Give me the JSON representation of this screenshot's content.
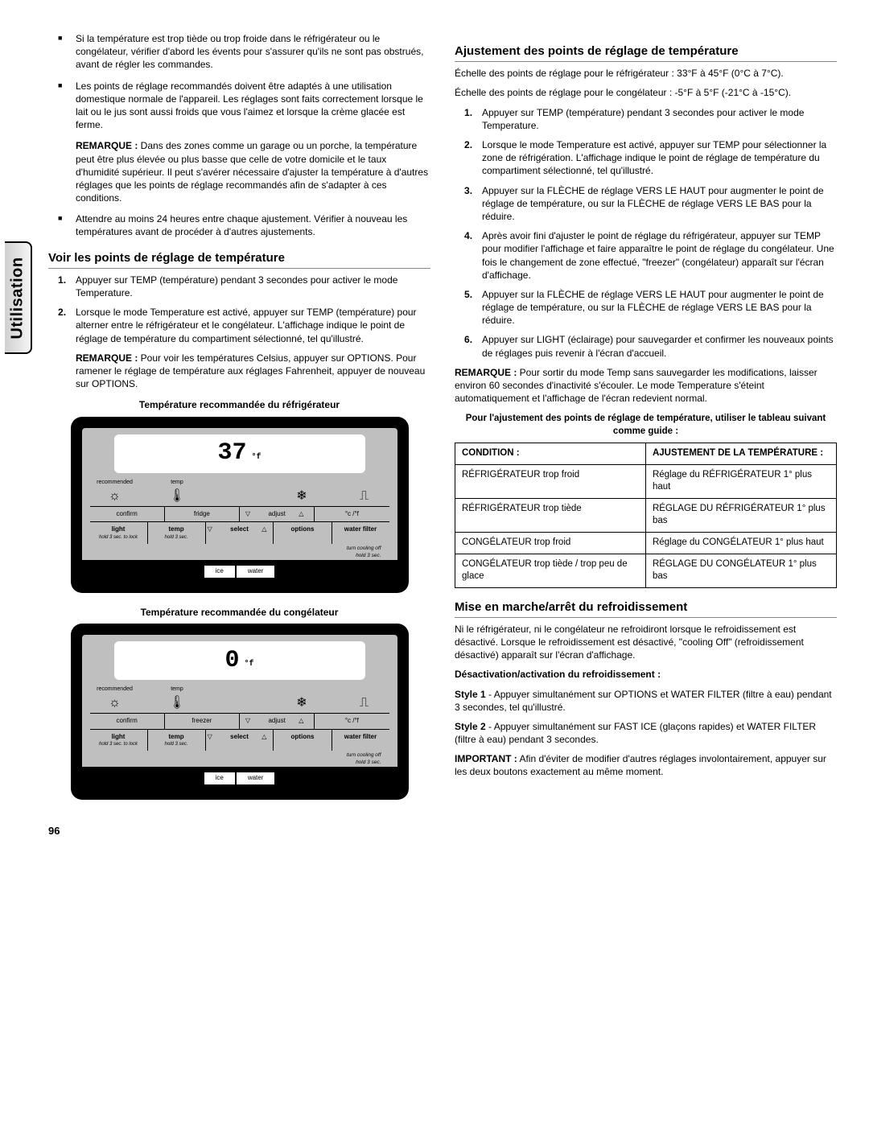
{
  "side_tab": "Utilisation",
  "page_number": "96",
  "left": {
    "bullets": [
      "Si la température est trop tiède ou trop froide dans le réfrigérateur ou le congélateur, vérifier d'abord les évents pour s'assurer qu'ils ne sont pas obstrués, avant de régler les commandes.",
      "Les points de réglage recommandés doivent être adaptés à une utilisation domestique normale de l'appareil. Les réglages sont faits correctement lorsque le lait ou le jus sont aussi froids que vous l'aimez et lorsque la crème glacée est ferme."
    ],
    "remark1_label": "REMARQUE :",
    "remark1_text": " Dans des zones comme un garage ou un porche, la température peut être plus élevée ou plus basse que celle de votre domicile et le taux d'humidité supérieur. Il peut s'avérer nécessaire d'ajuster la température à d'autres réglages que les points de réglage recommandés afin de s'adapter à ces conditions.",
    "bullet3": "Attendre au moins 24 heures entre chaque ajustement. Vérifier à nouveau les températures avant de procéder à d'autres ajustements.",
    "h_view": "Voir les points de réglage de température",
    "view_steps": [
      "Appuyer sur TEMP (température) pendant 3 secondes pour activer le mode Temperature.",
      "Lorsque le mode Temperature est activé, appuyer sur TEMP (température) pour alterner entre le réfrigérateur et le congélateur. L'affichage indique le point de réglage de température du compartiment sélectionné, tel qu'illustré."
    ],
    "remark2_label": "REMARQUE :",
    "remark2_text": " Pour voir les températures Celsius, appuyer sur OPTIONS. Pour ramener le réglage de température aux réglages Fahrenheit, appuyer de nouveau sur OPTIONS.",
    "caption_fridge": "Température recommandée du réfrigérateur",
    "caption_freezer": "Température recommandée du congélateur",
    "panel": {
      "fridge_temp": "37",
      "freezer_temp": "0",
      "unit": "°f",
      "recommended": "recommended",
      "temp": "temp",
      "confirm": "confirm",
      "fridge": "fridge",
      "freezer": "freezer",
      "adjust": "adjust",
      "cf": "°c /°f",
      "light": "light",
      "hold_lock": "hold 3 sec. to lock",
      "temp_btn": "temp",
      "hold3": "hold 3 sec.",
      "select": "select",
      "options": "options",
      "water_filter": "water filter",
      "cooling": "turn cooling off",
      "ice": "ice",
      "water": "water"
    }
  },
  "right": {
    "h_adjust": "Ajustement des points de réglage de température",
    "scale_fridge": "Échelle des points de réglage pour le réfrigérateur : 33°F à 45°F (0°C à 7°C).",
    "scale_freezer": "Échelle des points de réglage pour le congélateur : -5°F à 5°F (-21°C à -15°C).",
    "steps": [
      "Appuyer sur TEMP (température) pendant 3 secondes pour activer le mode Temperature.",
      "Lorsque le mode Temperature est activé, appuyer sur TEMP pour sélectionner la zone de réfrigération. L'affichage indique le point de réglage de température du compartiment sélectionné, tel qu'illustré.",
      "Appuyer sur la FLÈCHE de réglage VERS LE HAUT pour augmenter le point de réglage de température, ou sur la FLÈCHE de réglage VERS LE BAS pour la réduire.",
      "Après avoir fini d'ajuster le point de réglage du réfrigérateur, appuyer sur TEMP pour modifier l'affichage et faire apparaître le point de réglage du congélateur. Une fois le changement de zone effectué, \"freezer\" (congélateur) apparaît sur l'écran d'affichage.",
      "Appuyer sur la FLÈCHE de réglage VERS LE HAUT pour augmenter le point de réglage de température, ou sur la FLÈCHE de réglage VERS LE BAS pour la réduire.",
      "Appuyer sur LIGHT (éclairage) pour sauvegarder et confirmer les nouveaux points de réglages puis revenir à l'écran d'accueil."
    ],
    "remark_label": "REMARQUE :",
    "remark_text": " Pour sortir du mode Temp sans sauvegarder les modifications, laisser environ 60 secondes d'inactivité s'écouler. Le mode Temperature s'éteint automatiquement et l'affichage de l'écran redevient normal.",
    "table_caption": "Pour l'ajustement des points de réglage de température, utiliser le tableau suivant comme guide :",
    "table": {
      "h1": "CONDITION :",
      "h2": "AJUSTEMENT DE LA TEMPÉRATURE :",
      "rows": [
        [
          "RÉFRIGÉRATEUR trop froid",
          "Réglage du RÉFRIGÉRATEUR 1° plus haut"
        ],
        [
          "RÉFRIGÉRATEUR trop tiède",
          "RÉGLAGE DU RÉFRIGÉRATEUR 1° plus bas"
        ],
        [
          "CONGÉLATEUR trop froid",
          "Réglage du CONGÉLATEUR 1° plus haut"
        ],
        [
          "CONGÉLATEUR trop tiède / trop peu de glace",
          "RÉGLAGE DU CONGÉLATEUR 1° plus bas"
        ]
      ]
    },
    "h_cooling": "Mise en marche/arrêt du refroidissement",
    "cooling_p": "Ni le réfrigérateur, ni le congélateur ne refroidiront lorsque le refroidissement est désactivé. Lorsque le refroidissement est désactivé, \"cooling Off\" (refroidissement désactivé) apparaît sur l'écran d'affichage.",
    "deact_label": "Désactivation/activation du refroidissement :",
    "style1_label": "Style 1",
    "style1_text": " - Appuyer simultanément sur OPTIONS et WATER FILTER (filtre à eau) pendant 3 secondes, tel qu'illustré.",
    "style2_label": "Style 2",
    "style2_text": " - Appuyer simultanément sur FAST ICE (glaçons rapides) et WATER FILTER (filtre à eau) pendant 3 secondes.",
    "important_label": "IMPORTANT :",
    "important_text": " Afin d'éviter de modifier d'autres réglages involontairement, appuyer sur les deux boutons exactement au même moment."
  }
}
